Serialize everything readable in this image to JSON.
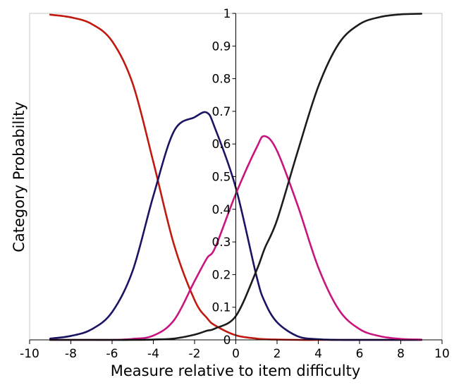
{
  "chart_data": {
    "type": "line",
    "title": "",
    "xlabel": "Measure relative to item difficulty",
    "ylabel": "Category Probability",
    "xlim": [
      -10,
      10
    ],
    "ylim": [
      0,
      1
    ],
    "xticks": [
      -10,
      -8,
      -6,
      -4,
      -2,
      0,
      2,
      4,
      6,
      8,
      10
    ],
    "yticks": [
      0,
      0.1,
      0.2,
      0.3,
      0.4,
      0.5,
      0.6,
      0.7,
      0.8,
      0.9,
      1
    ],
    "xtick_labels": [
      "-10",
      "-8",
      "-6",
      "-4",
      "-2",
      "0",
      "2",
      "4",
      "6",
      "8",
      "10"
    ],
    "ytick_labels": [
      "0",
      "0.1",
      "0.2",
      "0.3",
      "0.4",
      "0.5",
      "0.6",
      "0.7",
      "0.8",
      "0.9",
      "1"
    ],
    "grid": false,
    "legend": "none",
    "x": [
      -9,
      -8,
      -7,
      -6,
      -5,
      -4,
      -3,
      -2,
      -1.4,
      -1,
      0,
      1,
      1.4,
      2,
      3,
      4,
      5,
      6,
      7,
      8,
      9
    ],
    "series": [
      {
        "color": "#c0190f",
        "values": [
          0.996,
          0.988,
          0.968,
          0.915,
          0.785,
          0.545,
          0.292,
          0.122,
          0.067,
          0.044,
          0.014,
          0.004,
          0.002,
          0.001,
          0.0,
          0.0,
          0.0,
          0.0,
          0.0,
          0.0,
          0.0
        ]
      },
      {
        "color": "#1a1464",
        "values": [
          0.004,
          0.012,
          0.032,
          0.085,
          0.212,
          0.441,
          0.639,
          0.682,
          0.696,
          0.647,
          0.466,
          0.196,
          0.117,
          0.054,
          0.011,
          0.002,
          0.0,
          0.0,
          0.0,
          0.0,
          0.0
        ]
      },
      {
        "color": "#c8147e",
        "values": [
          0.0,
          0.0,
          0.0,
          0.0,
          0.003,
          0.013,
          0.06,
          0.18,
          0.25,
          0.283,
          0.447,
          0.588,
          0.624,
          0.579,
          0.412,
          0.222,
          0.092,
          0.033,
          0.011,
          0.003,
          0.001
        ]
      },
      {
        "color": "#1c1c1c",
        "values": [
          0.0,
          0.0,
          0.0,
          0.0,
          0.0,
          0.001,
          0.004,
          0.016,
          0.028,
          0.035,
          0.073,
          0.212,
          0.28,
          0.367,
          0.577,
          0.776,
          0.908,
          0.967,
          0.989,
          0.997,
          0.999
        ]
      }
    ]
  },
  "colors": {
    "axis": "#000000",
    "plot_border": "#c8c8c8",
    "background": "#ffffff"
  }
}
